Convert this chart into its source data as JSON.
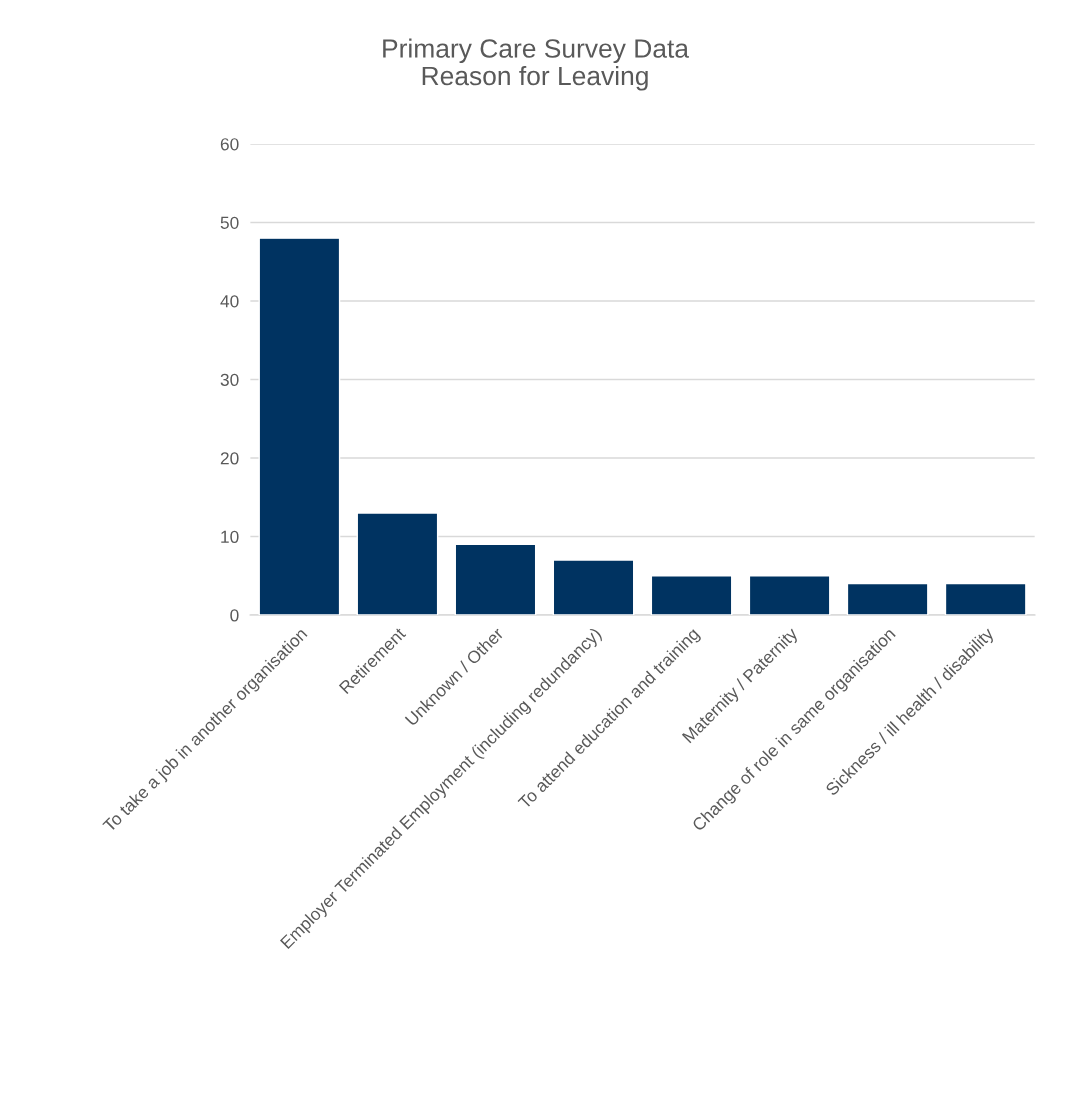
{
  "chart_data": {
    "type": "bar",
    "title": "Primary Care Survey Data\nReason for Leaving",
    "categories": [
      "To take a job in another organisation",
      "Retirement",
      "Unknown / Other",
      "Employer Terminated Employment (including redundancy)",
      "To attend education and training",
      "Maternity / Paternity",
      "Change of role in same organisation",
      "Sickness / ill health / disability"
    ],
    "values": [
      48,
      13,
      9,
      7,
      5,
      5,
      4,
      4
    ],
    "color": "#003361",
    "ylim": [
      0,
      60
    ],
    "yticks": [
      0,
      10,
      20,
      30,
      40,
      50,
      60
    ],
    "grid": "y",
    "legend": false
  }
}
